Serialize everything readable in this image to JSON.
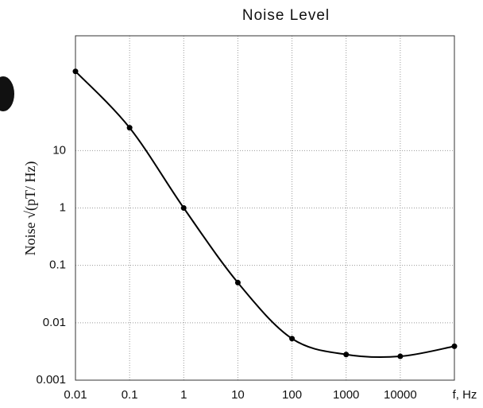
{
  "chart_data": {
    "type": "line",
    "title": "Noise Level",
    "xlabel": "f, Hz",
    "ylabel": "Noise √(pT/ Hz)",
    "x": [
      0.01,
      0.1,
      1,
      10,
      100,
      1000,
      10000,
      100000
    ],
    "series": [
      {
        "name": "Noise",
        "color": "#000000",
        "values": [
          240,
          25,
          1,
          0.05,
          0.0053,
          0.0028,
          0.0026,
          0.0039
        ]
      }
    ],
    "xscale": "log",
    "yscale": "log",
    "xlim": [
      0.01,
      100000
    ],
    "xticks": [
      0.01,
      0.1,
      1,
      10,
      100,
      1000,
      10000
    ],
    "ylim": [
      0.001,
      1000
    ],
    "yticks": [
      0.001,
      0.01,
      0.1,
      1,
      10
    ],
    "grid": true,
    "smooth": true
  }
}
